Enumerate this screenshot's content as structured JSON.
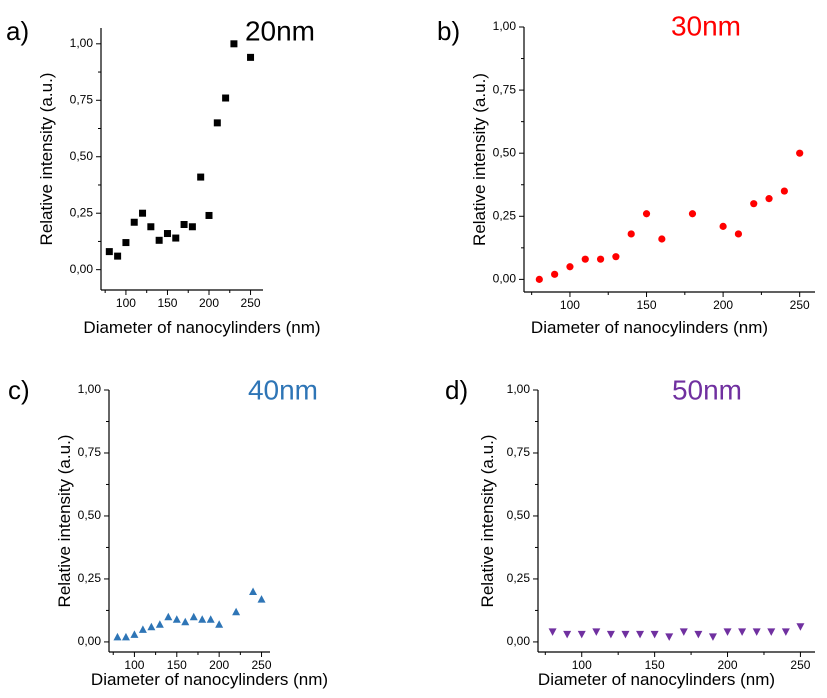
{
  "chart_data": [
    {
      "type": "scatter",
      "panel_label": "a)",
      "title": "20nm",
      "title_color": "#000000",
      "marker": "square",
      "marker_color": "#000000",
      "xlabel": "Diameter of nanocylinders (nm)",
      "ylabel": "Relative intensity (a.u.)",
      "xlim": [
        70,
        265
      ],
      "ylim": [
        -0.09,
        1.07
      ],
      "xticks": [
        "100",
        "150",
        "200",
        "250"
      ],
      "yticks": [
        "0,00",
        "0,25",
        "0,50",
        "0,75",
        "1,00"
      ],
      "grid": false,
      "x": [
        80,
        90,
        100,
        110,
        120,
        130,
        140,
        150,
        160,
        170,
        180,
        190,
        200,
        210,
        220,
        230,
        250
      ],
      "y": [
        0.08,
        0.06,
        0.12,
        0.21,
        0.25,
        0.19,
        0.13,
        0.16,
        0.14,
        0.2,
        0.19,
        0.41,
        0.24,
        0.65,
        0.76,
        1.0,
        0.94
      ]
    },
    {
      "type": "scatter",
      "panel_label": "b)",
      "title": "30nm",
      "title_color": "#ff0000",
      "marker": "circle",
      "marker_color": "#ff0000",
      "xlabel": "Diameter of nanocylinders (nm)",
      "ylabel": "Relative intensity (a.u.)",
      "xlim": [
        70,
        260
      ],
      "ylim": [
        -0.05,
        1.0
      ],
      "xticks": [
        "100",
        "150",
        "200",
        "250"
      ],
      "yticks": [
        "0,00",
        "0,25",
        "0,50",
        "0,75",
        "1,00"
      ],
      "grid": false,
      "x": [
        80,
        90,
        100,
        110,
        120,
        130,
        140,
        150,
        160,
        180,
        200,
        210,
        220,
        230,
        240,
        250
      ],
      "y": [
        0.0,
        0.02,
        0.05,
        0.08,
        0.08,
        0.09,
        0.18,
        0.26,
        0.16,
        0.26,
        0.21,
        0.18,
        0.3,
        0.32,
        0.35,
        0.5
      ]
    },
    {
      "type": "scatter",
      "panel_label": "c)",
      "title": "40nm",
      "title_color": "#2e75b6",
      "marker": "triangle-up",
      "marker_color": "#2e75b6",
      "xlabel": "Diameter of nanocylinders (nm)",
      "ylabel": "Relative intensity (a.u.)",
      "xlim": [
        70,
        260
      ],
      "ylim": [
        -0.04,
        1.0
      ],
      "xticks": [
        "100",
        "150",
        "200",
        "250"
      ],
      "yticks": [
        "0,00",
        "0,25",
        "0,50",
        "0,75",
        "1,00"
      ],
      "grid": false,
      "x": [
        80,
        90,
        100,
        110,
        120,
        130,
        140,
        150,
        160,
        170,
        180,
        190,
        200,
        220,
        240,
        250
      ],
      "y": [
        0.02,
        0.02,
        0.03,
        0.05,
        0.06,
        0.07,
        0.1,
        0.09,
        0.08,
        0.1,
        0.09,
        0.09,
        0.07,
        0.12,
        0.2,
        0.17
      ]
    },
    {
      "type": "scatter",
      "panel_label": "d)",
      "title": "50nm",
      "title_color": "#7030a0",
      "marker": "triangle-down",
      "marker_color": "#7030a0",
      "xlabel": "Diameter of nanocylinders (nm)",
      "ylabel": "Relative intensity (a.u.)",
      "xlim": [
        70,
        260
      ],
      "ylim": [
        -0.04,
        1.0
      ],
      "xticks": [
        "100",
        "150",
        "200",
        "250"
      ],
      "yticks": [
        "0,00",
        "0,25",
        "0,50",
        "0,75",
        "1,00"
      ],
      "grid": false,
      "x": [
        80,
        90,
        100,
        110,
        120,
        130,
        140,
        150,
        160,
        170,
        180,
        190,
        200,
        210,
        220,
        230,
        240,
        250
      ],
      "y": [
        0.04,
        0.03,
        0.03,
        0.04,
        0.03,
        0.03,
        0.03,
        0.03,
        0.02,
        0.04,
        0.03,
        0.02,
        0.04,
        0.04,
        0.04,
        0.04,
        0.04,
        0.06
      ]
    }
  ]
}
